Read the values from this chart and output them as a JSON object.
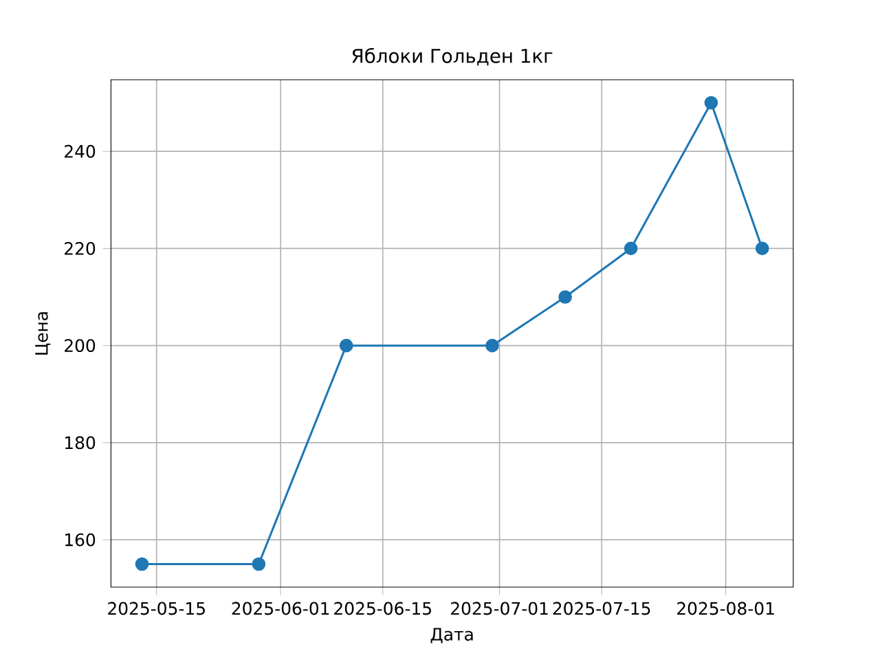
{
  "chart_data": {
    "type": "line",
    "title": "Яблоки Гольден 1кг",
    "xlabel": "Дата",
    "ylabel": "Цена",
    "x": [
      "2025-05-13",
      "2025-05-29",
      "2025-06-10",
      "2025-06-30",
      "2025-07-10",
      "2025-07-19",
      "2025-07-30",
      "2025-08-06"
    ],
    "series": [
      {
        "color": "#1f77b4",
        "values": [
          155,
          155,
          200,
          200,
          210,
          220,
          250,
          220
        ]
      }
    ],
    "xlim": [
      "2025-05-08T18:00",
      "2025-08-10T06:00"
    ],
    "xticks": [
      "2025-05-15",
      "2025-06-01",
      "2025-06-15",
      "2025-07-01",
      "2025-07-15",
      "2025-08-01"
    ],
    "ylim": [
      150.25,
      254.75
    ],
    "yticks": [
      160,
      180,
      200,
      220,
      240
    ],
    "grid": true,
    "marker": "circle",
    "line_style": "solid"
  }
}
